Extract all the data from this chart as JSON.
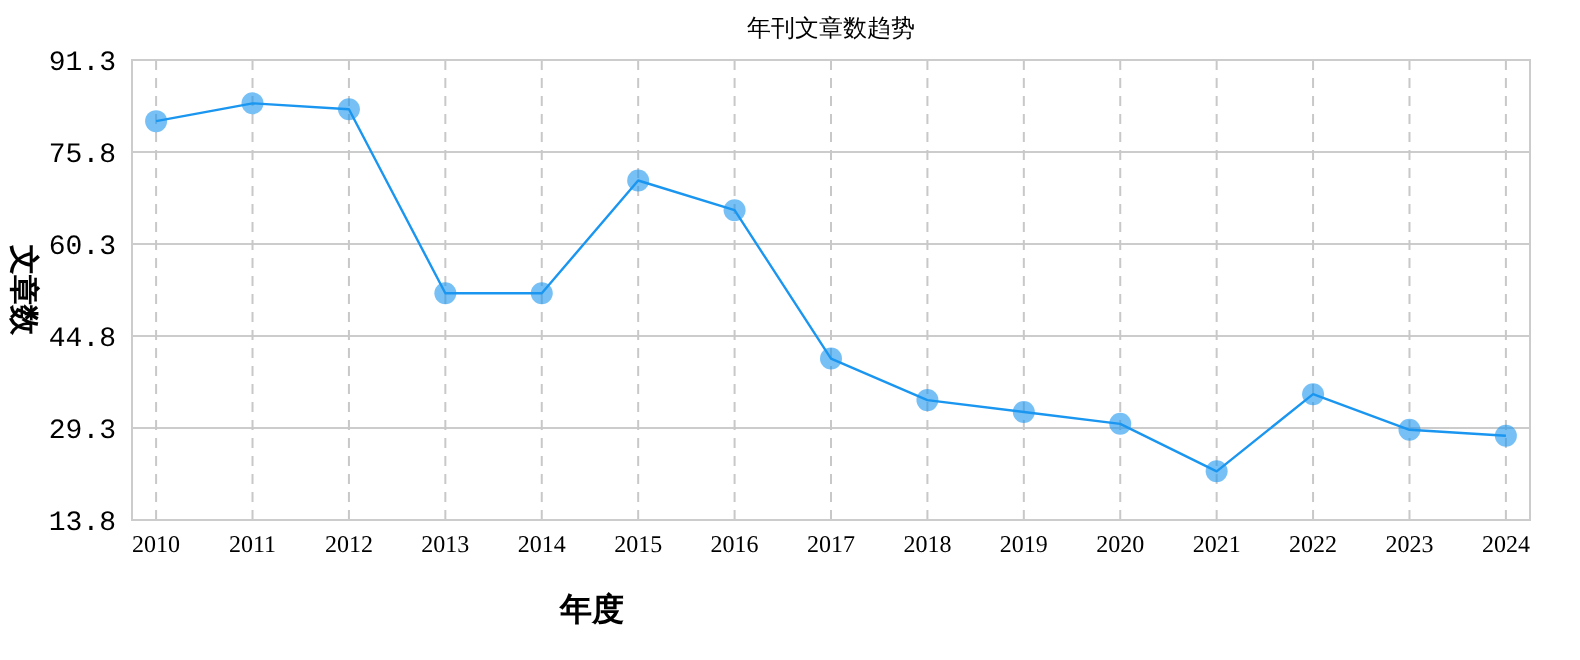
{
  "chart_data": {
    "type": "line",
    "title": "年刊文章数趋势",
    "xlabel": "年度",
    "ylabel": "文章数",
    "categories": [
      "2010",
      "2011",
      "2012",
      "2013",
      "2014",
      "2015",
      "2016",
      "2017",
      "2018",
      "2019",
      "2020",
      "2021",
      "2022",
      "2023",
      "2024"
    ],
    "series": [
      {
        "color": "#1a96f0",
        "values": [
          81,
          84,
          83,
          52,
          52,
          71,
          66,
          41,
          34,
          32,
          30,
          22,
          35,
          29,
          28
        ]
      }
    ],
    "ylim": [
      13.8,
      91.3
    ],
    "yticks": [
      13.8,
      29.3,
      44.8,
      60.3,
      75.8,
      91.3
    ],
    "grid": true,
    "marker": "circle",
    "line_style": "solid"
  }
}
